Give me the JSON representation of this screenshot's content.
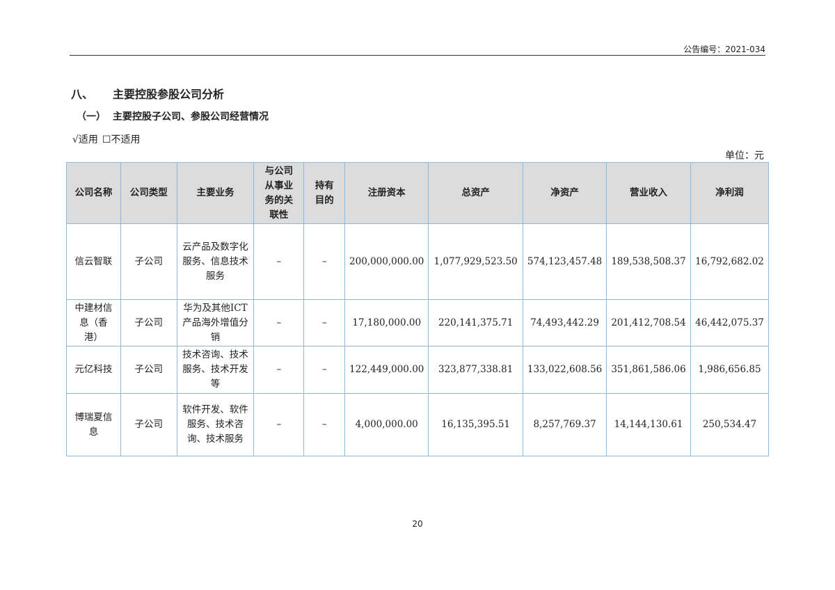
{
  "header": {
    "announcement_no": "公告编号：2021-034"
  },
  "section": {
    "number": "八、",
    "title": "主要控股参股公司分析"
  },
  "subsection": {
    "number": "（一）",
    "title": "主要控股子公司、参股公司经营情况"
  },
  "applicability": {
    "applicable": "√适用",
    "not_applicable": "☐不适用"
  },
  "unit": "单位：元",
  "table": {
    "columns": [
      "公司名称",
      "公司类型",
      "主要业务",
      "与公司从事业务的关联性",
      "持有目的",
      "注册资本",
      "总资产",
      "净资产",
      "营业收入",
      "净利润"
    ],
    "rows": [
      [
        "信云智联",
        "子公司",
        "云产品及数字化服务、信息技术服务",
        "–",
        "–",
        "200,000,000.00",
        "1,077,929,523.50",
        "574,123,457.48",
        "189,538,508.37",
        "16,792,682.02"
      ],
      [
        "中建材信息（香港）",
        "子公司",
        "华为及其他ICT产品海外增值分销",
        "–",
        "–",
        "17,180,000.00",
        "220,141,375.71",
        "74,493,442.29",
        "201,412,708.54",
        "46,442,075.37"
      ],
      [
        "元亿科技",
        "子公司",
        "技术咨询、技术服务、技术开发等",
        "–",
        "–",
        "122,449,000.00",
        "323,877,338.81",
        "133,022,608.56",
        "351,861,586.06",
        "1,986,656.85"
      ],
      [
        "博瑞夏信息",
        "子公司",
        "软件开发、软件服务、技术咨询、技术服务",
        "–",
        "–",
        "4,000,000.00",
        "16,135,395.51",
        "8,257,769.37",
        "14,144,130.61",
        "250,534.47"
      ]
    ]
  },
  "footer": {
    "page_number": "20"
  }
}
